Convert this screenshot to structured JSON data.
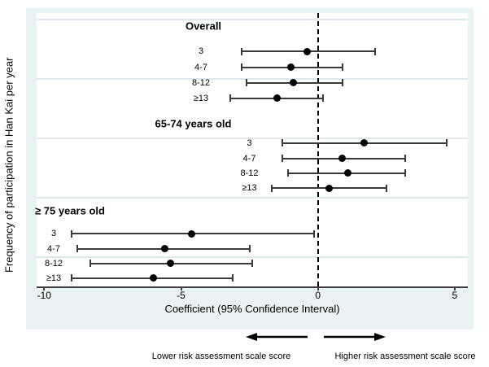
{
  "y_axis_label": "Frequency of participation in Han Kai per year",
  "x_axis_label": "Coefficient (95% Confidence Interval)",
  "footer": {
    "left_arrow_label": "Lower risk assessment scale score",
    "right_arrow_label": "Higher risk assessment scale score"
  },
  "colors": {
    "graph_background": "#eaf2f3",
    "plot_background": "#ffffff",
    "gridline": "#dde9ec",
    "axis_line": "#3f3f3f",
    "ci_line": "#3a3a3a",
    "marker": "#000000",
    "reference_line": "#000000",
    "text": "#000000"
  },
  "chart_data": {
    "type": "scatter",
    "subtype": "forest_coefficient_plot",
    "title": "",
    "xlabel": "Coefficient (95% Confidence Interval)",
    "ylabel": "Frequency of participation in Han Kai per year",
    "xlim": [
      -10.3,
      5.5
    ],
    "x_ticks": [
      -10,
      -5,
      0,
      5
    ],
    "reference_line_x": 0,
    "grid": "horizontal",
    "legend_position": "none",
    "groups": [
      {
        "title": "Overall",
        "items": [
          {
            "label": "3",
            "estimate": -0.4,
            "ci_low": -2.8,
            "ci_high": 2.1
          },
          {
            "label": "4-7",
            "estimate": -1.0,
            "ci_low": -2.8,
            "ci_high": 0.9
          },
          {
            "label": "8-12",
            "estimate": -0.9,
            "ci_low": -2.6,
            "ci_high": 0.9
          },
          {
            "label": "≥13",
            "estimate": -1.5,
            "ci_low": -3.2,
            "ci_high": 0.2
          }
        ]
      },
      {
        "title": "65-74 years old",
        "items": [
          {
            "label": "3",
            "estimate": 1.7,
            "ci_low": -1.3,
            "ci_high": 4.7
          },
          {
            "label": "4-7",
            "estimate": 0.9,
            "ci_low": -1.3,
            "ci_high": 3.2
          },
          {
            "label": "8-12",
            "estimate": 1.1,
            "ci_low": -1.1,
            "ci_high": 3.2
          },
          {
            "label": "≥13",
            "estimate": 0.4,
            "ci_low": -1.7,
            "ci_high": 2.5
          }
        ]
      },
      {
        "title": "≥ 75 years old",
        "items": [
          {
            "label": "3",
            "estimate": -4.6,
            "ci_low": -9.0,
            "ci_high": -0.15
          },
          {
            "label": "4-7",
            "estimate": -5.6,
            "ci_low": -8.8,
            "ci_high": -2.5
          },
          {
            "label": "8-12",
            "estimate": -5.4,
            "ci_low": -8.3,
            "ci_high": -2.4
          },
          {
            "label": "≥13",
            "estimate": -6.0,
            "ci_low": -9.0,
            "ci_high": -3.1
          }
        ]
      }
    ]
  }
}
